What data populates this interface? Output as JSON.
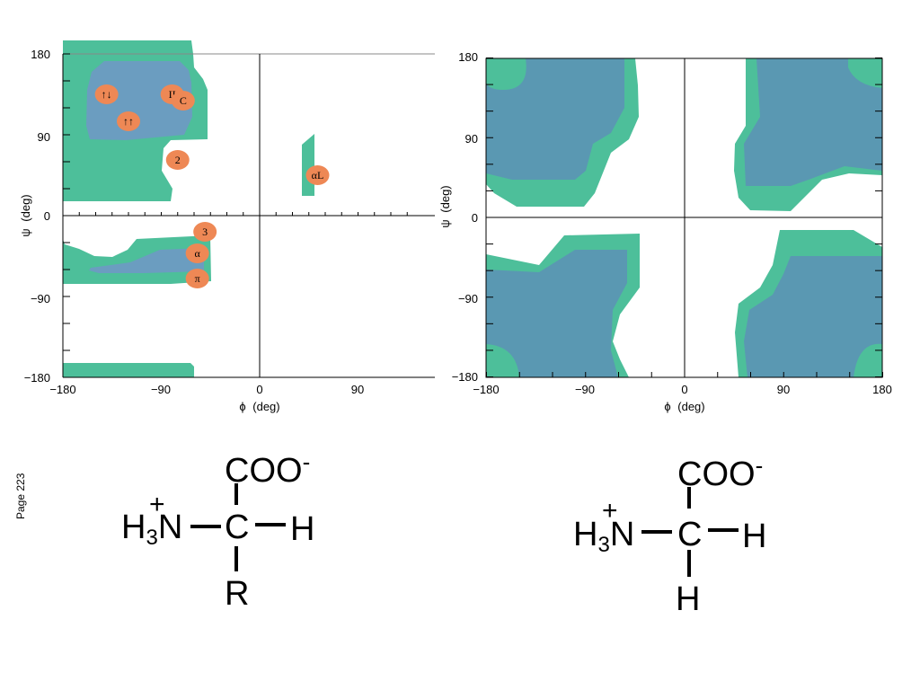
{
  "page_label": "Page 223",
  "plots": [
    {
      "name": "ramachandran-general",
      "xlabel_symbol": "ϕ",
      "xlabel_unit": "(deg)",
      "ylabel_symbol": "ψ",
      "ylabel_unit": "(deg)",
      "x_ticks": [
        "−180",
        "−90",
        "0",
        "90"
      ],
      "y_ticks": [
        "180",
        "90",
        "0",
        "−90",
        "−180"
      ],
      "markers": [
        {
          "label": "↑↓",
          "phi": -140,
          "psi": 135
        },
        {
          "label": "II",
          "phi": -80,
          "psi": 135
        },
        {
          "label": "C",
          "phi": -70,
          "psi": 128
        },
        {
          "label": "↑↑",
          "phi": -120,
          "psi": 105
        },
        {
          "label": "2",
          "phi": -75,
          "psi": 62
        },
        {
          "label": "αL",
          "phi": 53,
          "psi": 45
        },
        {
          "label": "3",
          "phi": -50,
          "psi": -18
        },
        {
          "label": "α",
          "phi": -57,
          "psi": -42
        },
        {
          "label": "π",
          "phi": -57,
          "psi": -70
        }
      ]
    },
    {
      "name": "ramachandran-glycine",
      "xlabel_symbol": "ϕ",
      "xlabel_unit": "(deg)",
      "ylabel_symbol": "ψ",
      "ylabel_unit": "(deg)",
      "x_ticks": [
        "−180",
        "−90",
        "0",
        "90",
        "180"
      ],
      "y_ticks": [
        "180",
        "90",
        "0",
        "−90",
        "−180"
      ]
    }
  ],
  "chart_data": [
    {
      "type": "scatter",
      "title": "",
      "xlabel": "ϕ (deg)",
      "ylabel": "ψ (deg)",
      "xlim": [
        -180,
        180
      ],
      "ylim": [
        -180,
        180
      ],
      "points": [
        {
          "label": "↑↓",
          "x": -140,
          "y": 135
        },
        {
          "label": "II",
          "x": -80,
          "y": 135
        },
        {
          "label": "C",
          "x": -70,
          "y": 128
        },
        {
          "label": "↑↑",
          "x": -120,
          "y": 105
        },
        {
          "label": "2",
          "x": -75,
          "y": 62
        },
        {
          "label": "αL",
          "x": 53,
          "y": 45
        },
        {
          "label": "3",
          "x": -50,
          "y": -18
        },
        {
          "label": "α",
          "x": -57,
          "y": -42
        },
        {
          "label": "π",
          "x": -57,
          "y": -70
        }
      ]
    },
    {
      "type": "area",
      "title": "",
      "xlabel": "ϕ (deg)",
      "ylabel": "ψ (deg)",
      "xlim": [
        -180,
        180
      ],
      "ylim": [
        -180,
        180
      ]
    }
  ],
  "colors": {
    "outer_region": "#4dbf9a",
    "inner_region": "#6699bb",
    "inner_region_dark": "#5595b0",
    "marker": "#ee8855"
  },
  "structures": [
    {
      "name": "amino-acid",
      "top_group": "COO",
      "top_charge": "-",
      "left_group": "H",
      "left_sub": "3",
      "left_atom": "N",
      "left_charge": "+",
      "center": "C",
      "right": "H",
      "bottom": "R"
    },
    {
      "name": "glycine",
      "top_group": "COO",
      "top_charge": "-",
      "left_group": "H",
      "left_sub": "3",
      "left_atom": "N",
      "left_charge": "+",
      "center": "C",
      "right": "H",
      "bottom": "H"
    }
  ]
}
